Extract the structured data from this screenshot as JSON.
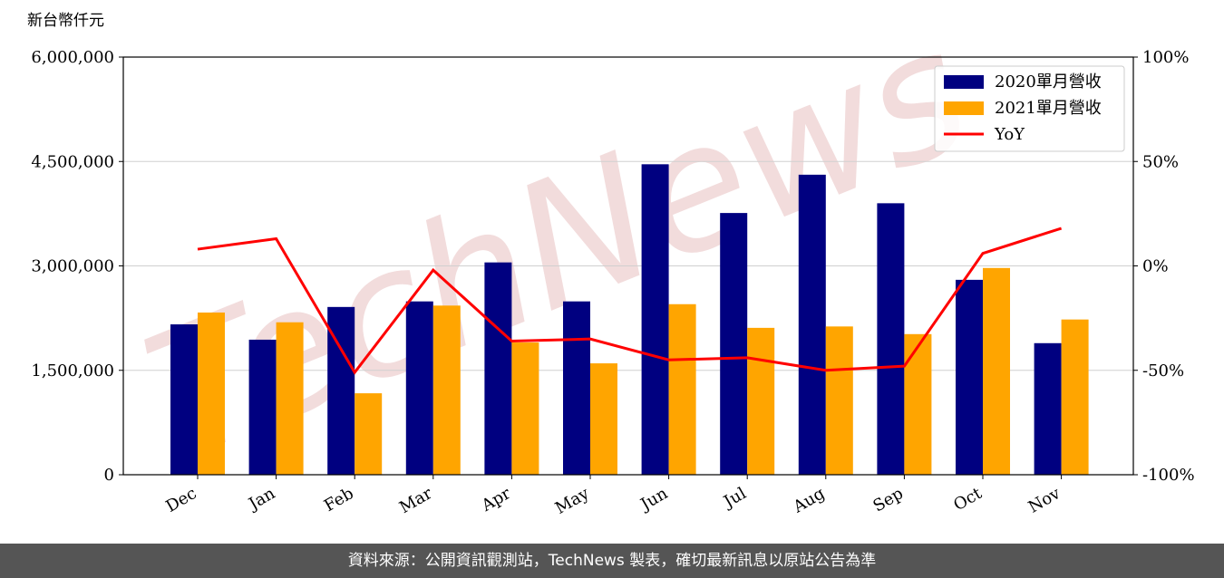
{
  "chart_data": {
    "type": "bar-line",
    "ylabel": "新台幣仟元",
    "watermark": "TechNews",
    "categories": [
      "Dec",
      "Jan",
      "Feb",
      "Mar",
      "Apr",
      "May",
      "Jun",
      "Jul",
      "Aug",
      "Sep",
      "Oct",
      "Nov"
    ],
    "series": [
      {
        "name": "2020單月營收",
        "color": "#000080",
        "type": "bar",
        "values": [
          2160000,
          1940000,
          2410000,
          2490000,
          3050000,
          2490000,
          4460000,
          3760000,
          4310000,
          3900000,
          2800000,
          1890000
        ]
      },
      {
        "name": "2021單月營收",
        "color": "#ffa500",
        "type": "bar",
        "values": [
          2330000,
          2190000,
          1170000,
          2430000,
          1900000,
          1600000,
          2450000,
          2110000,
          2130000,
          2020000,
          2970000,
          2230000
        ]
      },
      {
        "name": "YoY",
        "color": "#ff0000",
        "type": "line",
        "axis": "y2",
        "values": [
          8,
          13,
          -51,
          -2,
          -36,
          -35,
          -45,
          -44,
          -50,
          -48,
          6,
          18
        ]
      }
    ],
    "ylim": [
      0,
      6000000
    ],
    "yticks": [
      {
        "value": 0,
        "label": "0"
      },
      {
        "value": 1500000,
        "label": "1,500,000"
      },
      {
        "value": 3000000,
        "label": "3,000,000"
      },
      {
        "value": 4500000,
        "label": "4,500,000"
      },
      {
        "value": 6000000,
        "label": "6,000,000"
      }
    ],
    "y2lim": [
      -100,
      100
    ],
    "y2ticks": [
      {
        "value": -100,
        "label": "-100%"
      },
      {
        "value": -50,
        "label": "-50%"
      },
      {
        "value": 0,
        "label": "0%"
      },
      {
        "value": 50,
        "label": "50%"
      },
      {
        "value": 100,
        "label": "100%"
      }
    ],
    "grid": true,
    "legend": "upper right"
  },
  "footer": "資料來源：公開資訊觀測站，TechNews 製表，確切最新訊息以原站公告為準"
}
